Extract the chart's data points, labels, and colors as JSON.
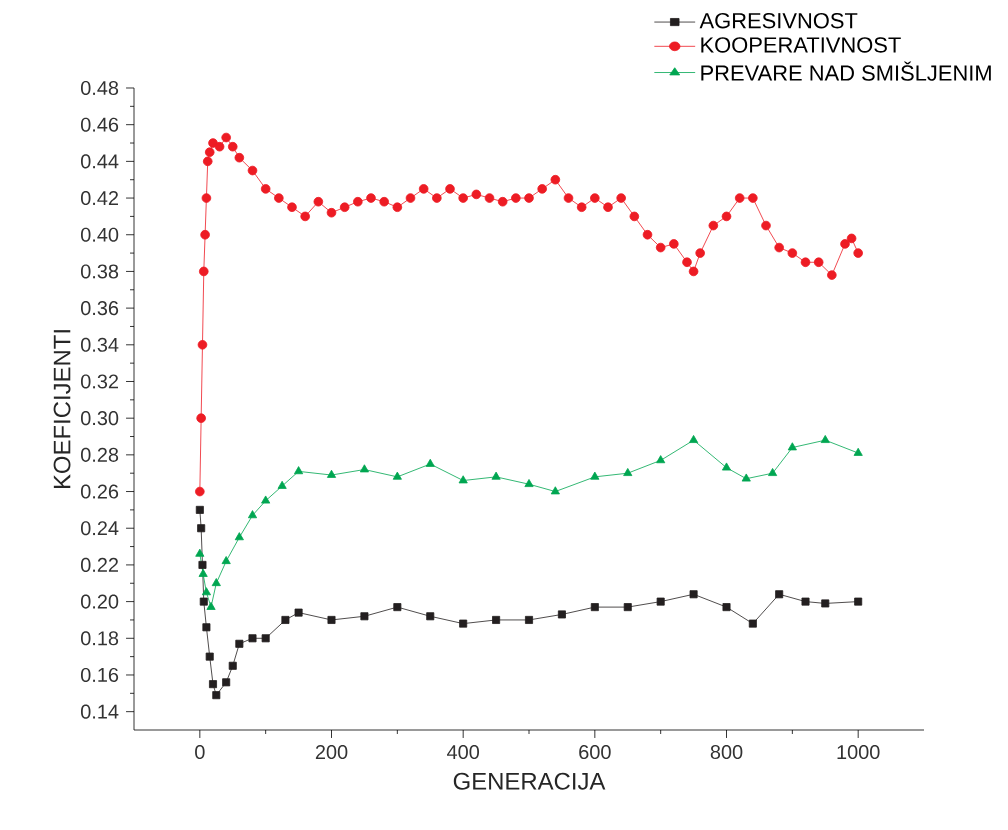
{
  "chart_data": {
    "type": "line",
    "xlabel": "GENERACIJA",
    "ylabel": "KOEFICIJENTI",
    "xlim": [
      -100,
      1100
    ],
    "ylim": [
      0.13,
      0.48
    ],
    "xticks": [
      0,
      200,
      400,
      600,
      800,
      1000
    ],
    "yticks": [
      {
        "value": 0.14,
        "label": "0.14"
      },
      {
        "value": 0.16,
        "label": "0.16"
      },
      {
        "value": 0.18,
        "label": "0.18"
      },
      {
        "value": 0.2,
        "label": "0.20"
      },
      {
        "value": 0.22,
        "label": "0.22"
      },
      {
        "value": 0.24,
        "label": "0.24"
      },
      {
        "value": 0.26,
        "label": "0.26"
      },
      {
        "value": 0.28,
        "label": "0.28"
      },
      {
        "value": 0.3,
        "label": "0.30"
      },
      {
        "value": 0.32,
        "label": "0.32"
      },
      {
        "value": 0.34,
        "label": "0.34"
      },
      {
        "value": 0.36,
        "label": "0.36"
      },
      {
        "value": 0.38,
        "label": "0.38"
      },
      {
        "value": 0.4,
        "label": "0.40"
      },
      {
        "value": 0.42,
        "label": "0.42"
      },
      {
        "value": 0.44,
        "label": "0.44"
      },
      {
        "value": 0.46,
        "label": "0.46"
      },
      {
        "value": 0.48,
        "label": "0.48"
      }
    ],
    "legend": "top right",
    "grid": false,
    "series": [
      {
        "name": "AGRESIVNOST",
        "color": "#231f20",
        "marker": "square",
        "x": [
          0,
          2,
          4,
          6,
          10,
          15,
          20,
          25,
          40,
          50,
          60,
          80,
          100,
          130,
          150,
          200,
          250,
          300,
          350,
          400,
          450,
          500,
          550,
          600,
          650,
          700,
          750,
          800,
          840,
          880,
          920,
          950,
          1000
        ],
        "values": [
          0.25,
          0.24,
          0.22,
          0.2,
          0.186,
          0.17,
          0.155,
          0.149,
          0.156,
          0.165,
          0.177,
          0.18,
          0.18,
          0.19,
          0.194,
          0.19,
          0.192,
          0.197,
          0.192,
          0.188,
          0.19,
          0.19,
          0.193,
          0.197,
          0.197,
          0.2,
          0.204,
          0.197,
          0.188,
          0.204,
          0.2,
          0.199,
          0.2
        ]
      },
      {
        "name": "KOOPERATIVNOST",
        "color": "#ed1c24",
        "marker": "circle",
        "x": [
          0,
          2,
          4,
          6,
          8,
          10,
          12,
          15,
          20,
          30,
          40,
          50,
          60,
          80,
          100,
          120,
          140,
          160,
          180,
          200,
          220,
          240,
          260,
          280,
          300,
          320,
          340,
          360,
          380,
          400,
          420,
          440,
          460,
          480,
          500,
          520,
          540,
          560,
          580,
          600,
          620,
          640,
          660,
          680,
          700,
          720,
          740,
          750,
          760,
          780,
          800,
          820,
          840,
          860,
          880,
          900,
          920,
          940,
          960,
          980,
          990,
          1000
        ],
        "values": [
          0.26,
          0.3,
          0.34,
          0.38,
          0.4,
          0.42,
          0.44,
          0.445,
          0.45,
          0.448,
          0.453,
          0.448,
          0.442,
          0.435,
          0.425,
          0.42,
          0.415,
          0.41,
          0.418,
          0.412,
          0.415,
          0.418,
          0.42,
          0.418,
          0.415,
          0.42,
          0.425,
          0.42,
          0.425,
          0.42,
          0.422,
          0.42,
          0.418,
          0.42,
          0.42,
          0.425,
          0.43,
          0.42,
          0.415,
          0.42,
          0.415,
          0.42,
          0.41,
          0.4,
          0.393,
          0.395,
          0.385,
          0.38,
          0.39,
          0.405,
          0.41,
          0.42,
          0.42,
          0.405,
          0.393,
          0.39,
          0.385,
          0.385,
          0.378,
          0.395,
          0.398,
          0.39
        ]
      },
      {
        "name": "PREVARE NAD SMIŠLJENIM",
        "color": "#00a651",
        "marker": "triangle",
        "x": [
          0,
          5,
          10,
          17,
          25,
          40,
          60,
          80,
          100,
          125,
          150,
          200,
          250,
          300,
          350,
          400,
          450,
          500,
          540,
          600,
          650,
          700,
          750,
          800,
          830,
          870,
          900,
          950,
          1000
        ],
        "values": [
          0.226,
          0.215,
          0.205,
          0.197,
          0.21,
          0.222,
          0.235,
          0.247,
          0.255,
          0.263,
          0.271,
          0.269,
          0.272,
          0.268,
          0.275,
          0.266,
          0.268,
          0.264,
          0.26,
          0.268,
          0.27,
          0.277,
          0.288,
          0.273,
          0.267,
          0.27,
          0.284,
          0.288,
          0.281
        ]
      }
    ]
  }
}
